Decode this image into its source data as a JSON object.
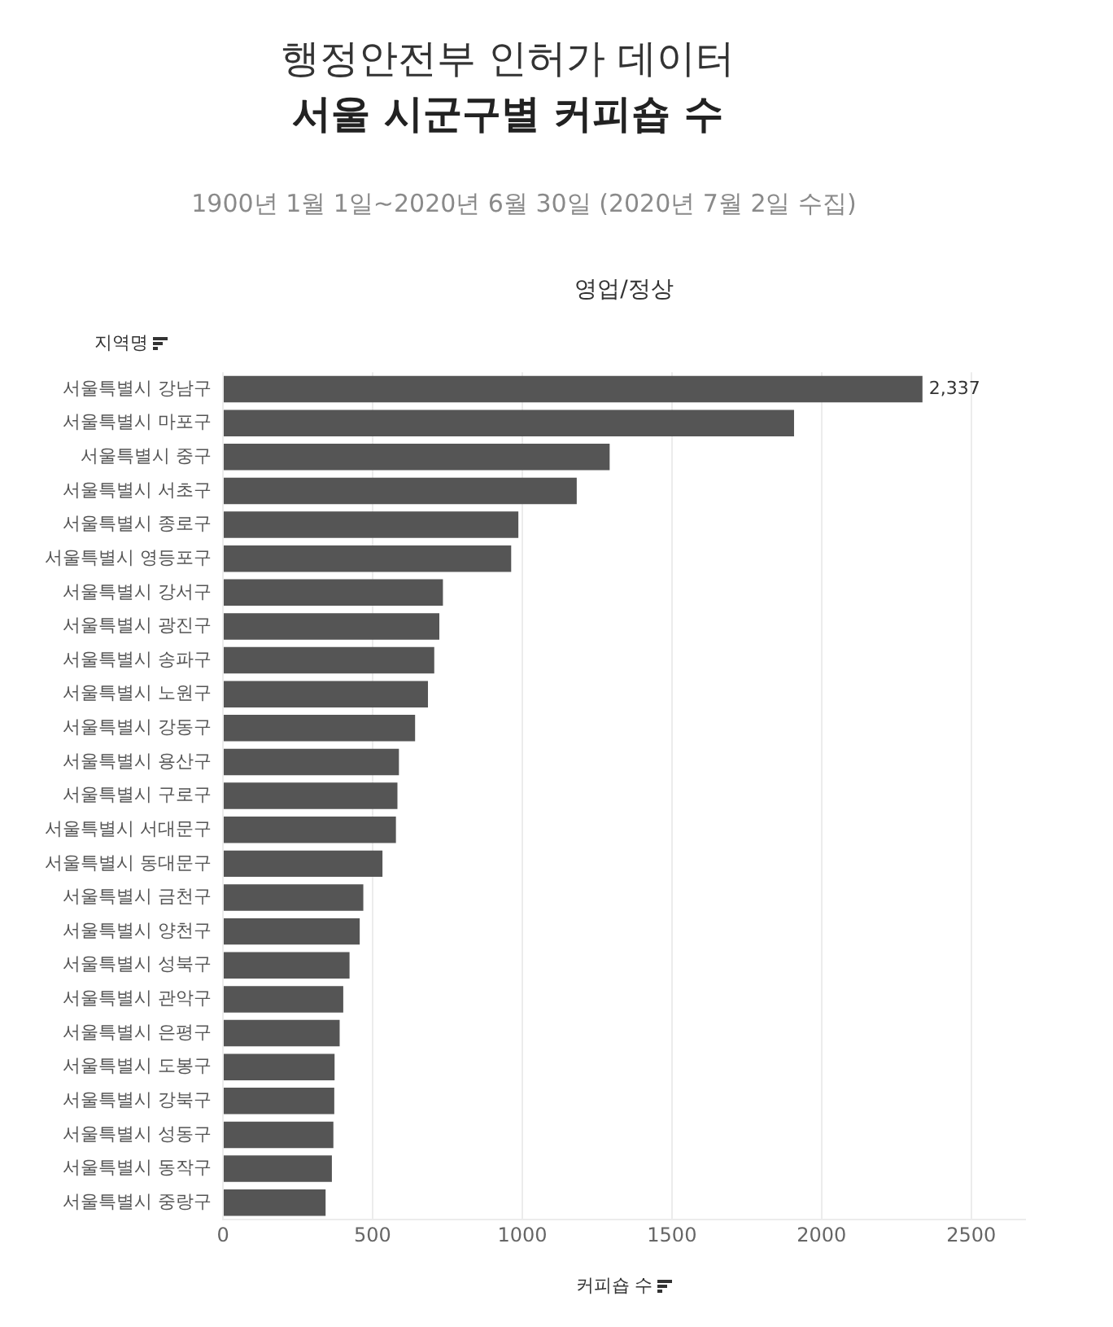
{
  "chart_data": {
    "type": "bar",
    "orientation": "horizontal",
    "title": "서울 시군구별 커피숍 수",
    "subtitle": "1900년 1월 1일~2020년 6월 30일 (2020년 7월 2일 수집)",
    "annotations": [
      "행정안전부 인허가 데이터",
      "영업/정상"
    ],
    "ylabel": "지역명",
    "xlabel": "커피숍 수",
    "categories": [
      "서울특별시 강남구",
      "서울특별시 마포구",
      "서울특별시 중구",
      "서울특별시 서초구",
      "서울특별시 종로구",
      "서울특별시 영등포구",
      "서울특별시 강서구",
      "서울특별시 광진구",
      "서울특별시 송파구",
      "서울특별시 노원구",
      "서울특별시 강동구",
      "서울특별시 용산구",
      "서울특별시 구로구",
      "서울특별시 서대문구",
      "서울특별시 동대문구",
      "서울특별시 금천구",
      "서울특별시 양천구",
      "서울특별시 성북구",
      "서울특별시 관악구",
      "서울특별시 은평구",
      "서울특별시 도봉구",
      "서울특별시 강북구",
      "서울특별시 성동구",
      "서울특별시 동작구",
      "서울특별시 중랑구"
    ],
    "values": [
      2337,
      1908,
      1292,
      1182,
      987,
      963,
      735,
      723,
      706,
      685,
      642,
      588,
      583,
      578,
      533,
      469,
      457,
      423,
      402,
      390,
      373,
      372,
      369,
      364,
      343
    ],
    "value_labels": [
      "2,337",
      null,
      null,
      null,
      null,
      null,
      null,
      null,
      null,
      null,
      null,
      null,
      null,
      null,
      null,
      null,
      null,
      null,
      null,
      null,
      null,
      null,
      null,
      null,
      null
    ],
    "color": "#555555",
    "xlim": [
      0,
      2680
    ],
    "xticks": [
      0,
      500,
      1000,
      1500,
      2000,
      2500
    ],
    "grid": "x"
  }
}
